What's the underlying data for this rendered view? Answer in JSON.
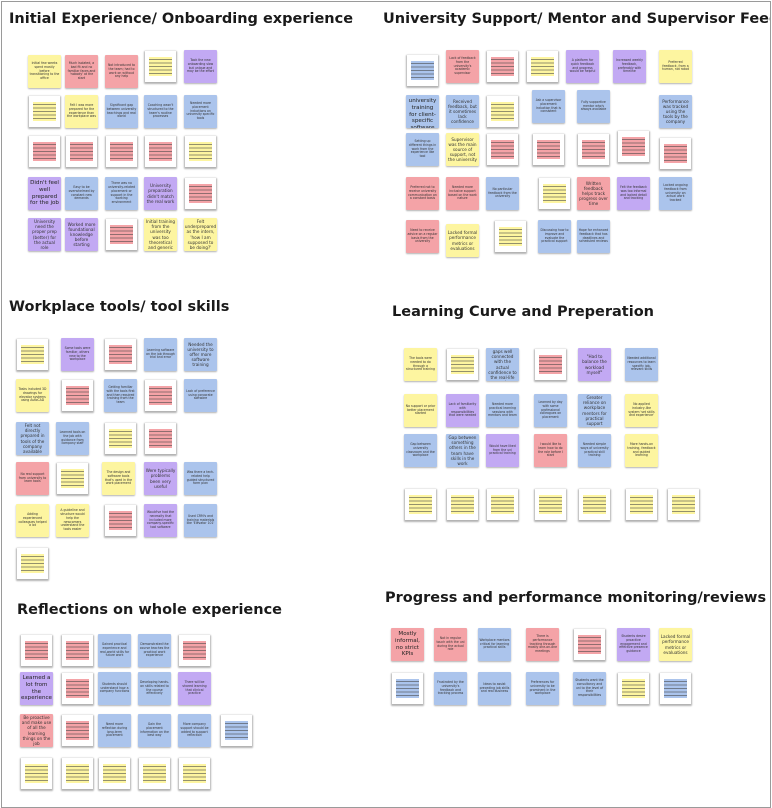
{
  "sections": [
    {
      "key": "onboarding",
      "title": "Initial Experience/ Onboarding experience"
    },
    {
      "key": "support",
      "title": "University Support/ Mentor and Supervisor Feedbacks"
    },
    {
      "key": "tools",
      "title": "Workplace tools/ tool skills"
    },
    {
      "key": "learning",
      "title": "Learning Curve and Preperation"
    },
    {
      "key": "reflections",
      "title": "Reflections on whole experience"
    },
    {
      "key": "progress",
      "title": "Progress and performance monitoring/reviews"
    }
  ],
  "note_colors": {
    "yellow": "#fdf5a0",
    "pink": "#f4a3a7",
    "blue": "#abc4ec",
    "purple": "#c2a9f3"
  },
  "notes": [
    {
      "text": "Initial few weeks spent mostly before transitioning to the office",
      "color": "yellow"
    },
    {
      "text": "Much isolated, a bad fit and no familiar faces and 'nobody' at the start",
      "color": "pink"
    },
    {
      "text": "Not introduced to the team; had to work on without any help",
      "color": "pink"
    },
    {
      "text": "",
      "color": "yellow"
    },
    {
      "text": "Took the new onboarding slow but unique and may be the effort",
      "color": "purple"
    },
    {
      "text": "",
      "color": "yellow"
    },
    {
      "text": "Felt I was more prepared for the experience than the workplace was",
      "color": "yellow"
    },
    {
      "text": "Significant gap between university teachings and real world",
      "color": "blue"
    },
    {
      "text": "Coaching wasn't structured to the team's routine processes",
      "color": "blue"
    },
    {
      "text": "Needed more placement inductions on university specific tools",
      "color": "blue"
    },
    {
      "text": "",
      "color": "pink"
    },
    {
      "text": "",
      "color": "pink"
    },
    {
      "text": "",
      "color": "pink"
    },
    {
      "text": "",
      "color": "pink"
    },
    {
      "text": "",
      "color": "yellow"
    },
    {
      "text": "Didn't feel well prepared for the job",
      "color": "purple"
    },
    {
      "text": "Easy to be overwhelmed by constant new demands",
      "color": "blue"
    },
    {
      "text": "There was no university-related placement or support in the working environment",
      "color": "blue"
    },
    {
      "text": "University preparation didn't match the real work",
      "color": "purple"
    },
    {
      "text": "",
      "color": "pink"
    },
    {
      "text": "University need the proper prep (better) for the actual role",
      "color": "purple"
    },
    {
      "text": "Worked more foundational knowledge before starting",
      "color": "purple"
    },
    {
      "text": "",
      "color": "pink"
    },
    {
      "text": "Initial training from the university was too theoretical and generic",
      "color": "yellow"
    },
    {
      "text": "Felt underprepared as the intern, 'how I am supposed to be doing?'",
      "color": "yellow"
    },
    {
      "text": "",
      "color": "blue"
    },
    {
      "text": "Lack of feedback from the university's academic supervisor",
      "color": "pink"
    },
    {
      "text": "",
      "color": "pink"
    },
    {
      "text": "",
      "color": "yellow"
    },
    {
      "text": "A platform for quick feedback and progress would be helpful",
      "color": "purple"
    },
    {
      "text": "Increased weekly feedback, preferably with timeline",
      "color": "purple"
    },
    {
      "text": "Preferred feedback, from a human, not robot",
      "color": "yellow"
    },
    {
      "text": "No university training for client-specific software",
      "color": "blue"
    },
    {
      "text": "Received feedback, but it sometimes lack confidence",
      "color": "blue"
    },
    {
      "text": "",
      "color": "yellow"
    },
    {
      "text": "Ask a supervisor placement induction that is consistent",
      "color": "blue"
    },
    {
      "text": "Fully supportive mentor who's always available",
      "color": "blue"
    },
    {
      "text": "Performance was tracked using the tools by the company",
      "color": "blue"
    },
    {
      "text": "Setting up different things in work from the experience like tool",
      "color": "blue"
    },
    {
      "text": "Supervisor was the main source of support, not the university",
      "color": "yellow"
    },
    {
      "text": "",
      "color": "pink"
    },
    {
      "text": "",
      "color": "pink"
    },
    {
      "text": "",
      "color": "pink"
    },
    {
      "text": "",
      "color": "pink"
    },
    {
      "text": "",
      "color": "pink"
    },
    {
      "text": "Preferred not to receive university communication on a constant basis",
      "color": "pink"
    },
    {
      "text": "Needed more inclusive support based on the work nature",
      "color": "pink"
    },
    {
      "text": "No particular feedback from the university",
      "color": "blue"
    },
    {
      "text": "",
      "color": "yellow"
    },
    {
      "text": "Written feedback helps track progress over time",
      "color": "pink"
    },
    {
      "text": "Felt the feedback was too informal and lacked detail and tracking",
      "color": "purple"
    },
    {
      "text": "Lacked ongoing feedback from university on actual work tracked",
      "color": "blue"
    },
    {
      "text": "Need to receive advice on a regular basis from the university",
      "color": "pink"
    },
    {
      "text": "Lacked formal performance metrics or evaluations",
      "color": "yellow"
    },
    {
      "text": "",
      "color": "yellow"
    },
    {
      "text": "Discussing how to improve and evaluate the practical support",
      "color": "blue"
    },
    {
      "text": "Hope for enhanced feedback that has deadlines and scheduled reviews",
      "color": "blue"
    },
    {
      "text": "",
      "color": "yellow"
    },
    {
      "text": "Some tools were familiar, others new to the workplace",
      "color": "purple"
    },
    {
      "text": "",
      "color": "pink"
    },
    {
      "text": "Learning software on the job through trial and error",
      "color": "blue"
    },
    {
      "text": "Needed the university to offer more software training",
      "color": "blue"
    },
    {
      "text": "Tasks included 3D drawings for elevator systems using AutoCAD",
      "color": "yellow"
    },
    {
      "text": "",
      "color": "pink"
    },
    {
      "text": "Getting familiar with the tools first and then required training from the team",
      "color": "blue"
    },
    {
      "text": "",
      "color": "pink"
    },
    {
      "text": "Lack of preference using corporate software",
      "color": "blue"
    },
    {
      "text": "Felt not directly prepared in tools of the company available",
      "color": "blue"
    },
    {
      "text": "Learned tools on the job with guidance from company staff",
      "color": "blue"
    },
    {
      "text": "",
      "color": "yellow"
    },
    {
      "text": "",
      "color": "pink"
    },
    {
      "text": "No real support from university to learn tools",
      "color": "pink"
    },
    {
      "text": "",
      "color": "yellow"
    },
    {
      "text": "The design and software tools that's used in the work placement",
      "color": "yellow"
    },
    {
      "text": "Were typically problems been very useful",
      "color": "purple"
    },
    {
      "text": "Was there a tech-related help guided structured form plan",
      "color": "blue"
    },
    {
      "text": "Adding experienced colleagues helped a lot",
      "color": "yellow"
    },
    {
      "text": "A guideline and structure would help the newcomers understand the tools easier",
      "color": "yellow"
    },
    {
      "text": "",
      "color": "pink"
    },
    {
      "text": "Would've had the necessity that included more company-specific tool software",
      "color": "purple"
    },
    {
      "text": "Used CRM's and training materials like 'Elevator 101'",
      "color": "blue"
    },
    {
      "text": "",
      "color": "yellow"
    },
    {
      "text": "The tools were needed to do through a structured training",
      "color": "yellow"
    },
    {
      "text": "",
      "color": "yellow"
    },
    {
      "text": "Technical gaps well connected with the actual confidence to the real-life work",
      "color": "blue"
    },
    {
      "text": "",
      "color": "pink"
    },
    {
      "text": "\"Had to balance the workload myself\"",
      "color": "purple"
    },
    {
      "text": "Needed additional resources to learn specific job-relevant skills",
      "color": "blue"
    },
    {
      "text": "No support or prior better placement started",
      "color": "yellow"
    },
    {
      "text": "Lack of familiarity with responsibilities that were needed",
      "color": "purple"
    },
    {
      "text": "Needed more practical learning sessions with mentors and team",
      "color": "blue"
    },
    {
      "text": "Learned by day with some professional colleagues on placement",
      "color": "blue"
    },
    {
      "text": "Greater reliance on workplace mentors for practical support",
      "color": "blue"
    },
    {
      "text": "No applied industry-like system 'set skills and experience'",
      "color": "yellow"
    },
    {
      "text": "Gap between university classroom and the workplace",
      "color": "blue"
    },
    {
      "text": "Gap between something others in the team have skills in the work",
      "color": "blue"
    },
    {
      "text": "Would have liked from the uni practical training",
      "color": "purple"
    },
    {
      "text": "I would like to learn how to do the role before I start",
      "color": "pink"
    },
    {
      "text": "Needed simple ways of university practical skill training",
      "color": "blue"
    },
    {
      "text": "More hands-on training, feedback and guided learning",
      "color": "yellow"
    },
    {
      "text": "",
      "color": "yellow"
    },
    {
      "text": "",
      "color": "yellow"
    },
    {
      "text": "",
      "color": "yellow"
    },
    {
      "text": "",
      "color": "yellow"
    },
    {
      "text": "",
      "color": "yellow"
    },
    {
      "text": "",
      "color": "yellow"
    },
    {
      "text": "",
      "color": "yellow"
    },
    {
      "text": "",
      "color": "pink"
    },
    {
      "text": "",
      "color": "pink"
    },
    {
      "text": "Gained practical experience and real-world skills for future work",
      "color": "blue"
    },
    {
      "text": "Demonstrated the course teaches the practical work experience",
      "color": "blue"
    },
    {
      "text": "",
      "color": "pink"
    },
    {
      "text": "Learned a lot from the experience",
      "color": "purple"
    },
    {
      "text": "",
      "color": "pink"
    },
    {
      "text": "Students should understand how a company functions",
      "color": "blue"
    },
    {
      "text": "Developing hands-on skills related to the course effectively",
      "color": "blue"
    },
    {
      "text": "There will be shared learning that clinical practice",
      "color": "purple"
    },
    {
      "text": "Be proactive and make use of all the learning things on the job",
      "color": "pink"
    },
    {
      "text": "",
      "color": "pink"
    },
    {
      "text": "Need more reflection during long-term placement",
      "color": "blue"
    },
    {
      "text": "Gain the placement information on the best way",
      "color": "blue"
    },
    {
      "text": "More company support should be added to support reflection",
      "color": "blue"
    },
    {
      "text": "",
      "color": "blue"
    },
    {
      "text": "",
      "color": "yellow"
    },
    {
      "text": "",
      "color": "yellow"
    },
    {
      "text": "",
      "color": "yellow"
    },
    {
      "text": "",
      "color": "yellow"
    },
    {
      "text": "",
      "color": "yellow"
    },
    {
      "text": "Mostly informal, no strict KPIs",
      "color": "pink"
    },
    {
      "text": "Not in regular touch with the uni during the actual role",
      "color": "pink"
    },
    {
      "text": "Workplace mentors critical for learning practical skills",
      "color": "blue"
    },
    {
      "text": "There is performance tracking through mostly one-on-one meetings",
      "color": "pink"
    },
    {
      "text": "",
      "color": "pink"
    },
    {
      "text": "Students desire proactive engagement and effective presence guidance",
      "color": "purple"
    },
    {
      "text": "Lacked formal performance metrics or evaluations",
      "color": "yellow"
    },
    {
      "text": "",
      "color": "blue"
    },
    {
      "text": "Frustrated by the university's feedback and tracking process",
      "color": "blue"
    },
    {
      "text": "Ideas to assist preceding job skills and real business",
      "color": "blue"
    },
    {
      "text": "Preferences for university to be prominent in the workplace",
      "color": "blue"
    },
    {
      "text": "Students want the consultancy and uni to the level of their responsibilities",
      "color": "blue"
    },
    {
      "text": "",
      "color": "yellow"
    },
    {
      "text": "",
      "color": "blue"
    }
  ]
}
